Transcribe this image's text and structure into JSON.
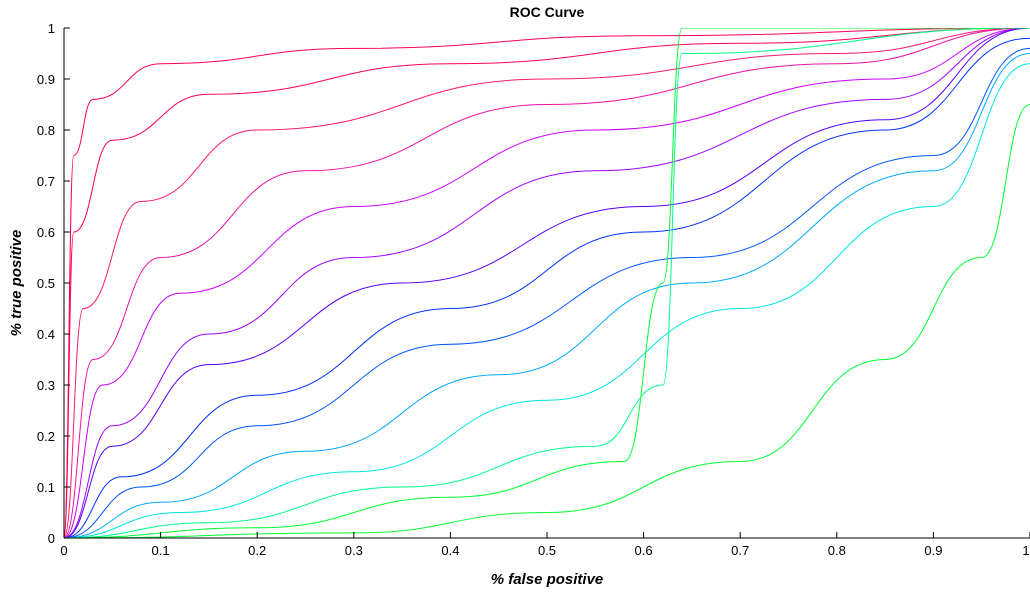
{
  "chart_data": {
    "type": "line",
    "title": "ROC Curve",
    "xlabel": "% false positive",
    "ylabel": "% true positive",
    "xlim": [
      0,
      1
    ],
    "ylim": [
      0,
      1
    ],
    "xticks": [
      0,
      0.1,
      0.2,
      0.3,
      0.4,
      0.5,
      0.6,
      0.7,
      0.8,
      0.9,
      1
    ],
    "xtick_labels": [
      "0",
      "0.1",
      "0.2",
      "0.3",
      "0.4",
      "0.5",
      "0.6",
      "0.7",
      "0.8",
      "0.9",
      "1"
    ],
    "yticks": [
      0,
      0.1,
      0.2,
      0.3,
      0.4,
      0.5,
      0.6,
      0.7,
      0.8,
      0.9,
      1
    ],
    "ytick_labels": [
      "0",
      "0.1",
      "0.2",
      "0.3",
      "0.4",
      "0.5",
      "0.6",
      "0.7",
      "0.8",
      "0.9",
      "1"
    ],
    "grid": false,
    "legend": "none",
    "colormap": [
      "#00ff33",
      "#00e5e5",
      "#0033ff",
      "#cc00ff",
      "#ff0055"
    ],
    "series": [
      {
        "color": "#ff0055",
        "x": [
          0,
          0.01,
          0.03,
          0.1,
          0.3,
          0.6,
          1
        ],
        "y": [
          0,
          0.75,
          0.86,
          0.93,
          0.96,
          0.985,
          1
        ]
      },
      {
        "color": "#ff0055",
        "x": [
          0,
          0.01,
          0.05,
          0.15,
          0.4,
          0.7,
          1
        ],
        "y": [
          0,
          0.6,
          0.78,
          0.87,
          0.93,
          0.97,
          1
        ]
      },
      {
        "color": "#ff1a6e",
        "x": [
          0,
          0.02,
          0.08,
          0.2,
          0.5,
          0.8,
          1
        ],
        "y": [
          0,
          0.45,
          0.66,
          0.8,
          0.9,
          0.95,
          1
        ]
      },
      {
        "color": "#ee10a8",
        "x": [
          0,
          0.03,
          0.1,
          0.25,
          0.5,
          0.8,
          1
        ],
        "y": [
          0,
          0.35,
          0.55,
          0.72,
          0.85,
          0.93,
          1
        ]
      },
      {
        "color": "#cc00ff",
        "x": [
          0,
          0.04,
          0.12,
          0.3,
          0.55,
          0.85,
          1
        ],
        "y": [
          0,
          0.3,
          0.48,
          0.65,
          0.8,
          0.9,
          1
        ]
      },
      {
        "color": "#a000ff",
        "x": [
          0,
          0.05,
          0.15,
          0.3,
          0.55,
          0.85,
          1
        ],
        "y": [
          0,
          0.22,
          0.4,
          0.55,
          0.72,
          0.86,
          1
        ]
      },
      {
        "color": "#5500ff",
        "x": [
          0,
          0.05,
          0.15,
          0.35,
          0.6,
          0.85,
          1
        ],
        "y": [
          0,
          0.18,
          0.34,
          0.5,
          0.65,
          0.82,
          1
        ]
      },
      {
        "color": "#0033ff",
        "x": [
          0,
          0.06,
          0.2,
          0.4,
          0.6,
          0.85,
          1
        ],
        "y": [
          0,
          0.12,
          0.28,
          0.45,
          0.6,
          0.8,
          0.98
        ]
      },
      {
        "color": "#0055ff",
        "x": [
          0,
          0.08,
          0.2,
          0.4,
          0.65,
          0.9,
          1
        ],
        "y": [
          0,
          0.1,
          0.22,
          0.38,
          0.55,
          0.75,
          0.96
        ]
      },
      {
        "color": "#00aaff",
        "x": [
          0,
          0.1,
          0.25,
          0.45,
          0.65,
          0.9,
          1
        ],
        "y": [
          0,
          0.07,
          0.17,
          0.32,
          0.5,
          0.72,
          0.95
        ]
      },
      {
        "color": "#00e5e5",
        "x": [
          0,
          0.12,
          0.3,
          0.5,
          0.7,
          0.9,
          1
        ],
        "y": [
          0,
          0.05,
          0.13,
          0.27,
          0.45,
          0.65,
          0.93
        ]
      },
      {
        "color": "#00ff88",
        "x": [
          0,
          0.15,
          0.35,
          0.55,
          0.62,
          0.64,
          1
        ],
        "y": [
          0,
          0.03,
          0.1,
          0.18,
          0.3,
          0.95,
          1
        ]
      },
      {
        "color": "#00ff33",
        "x": [
          0,
          0.2,
          0.4,
          0.58,
          0.62,
          0.64,
          1
        ],
        "y": [
          0,
          0.02,
          0.08,
          0.15,
          0.5,
          1,
          1
        ]
      },
      {
        "color": "#00ff33",
        "x": [
          0,
          0.3,
          0.5,
          0.7,
          0.85,
          0.95,
          1
        ],
        "y": [
          0,
          0.01,
          0.05,
          0.15,
          0.35,
          0.55,
          0.85
        ]
      }
    ]
  }
}
